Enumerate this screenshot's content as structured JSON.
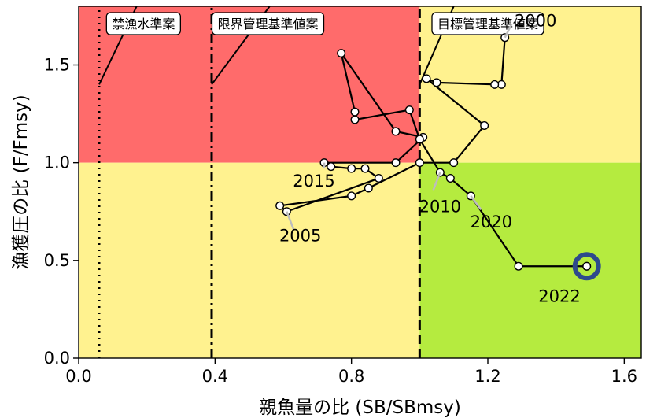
{
  "chart_data": {
    "type": "scatter",
    "xlabel": "親魚量の比 (SB/SBmsy)",
    "ylabel": "漁獲圧の比 (F/Fmsy)",
    "xlim": [
      0.0,
      1.65
    ],
    "ylim": [
      0.0,
      1.8
    ],
    "xticks": [
      0.0,
      0.4,
      0.8,
      1.2,
      1.6
    ],
    "xtick_labels": [
      "0.0",
      "0.4",
      "0.8",
      "1.2",
      "1.6"
    ],
    "yticks": [
      0.0,
      0.5,
      1.0,
      1.5
    ],
    "ytick_labels": [
      "0.0",
      "0.5",
      "1.0",
      "1.5"
    ],
    "zones": [
      {
        "x": [
          0.0,
          1.0
        ],
        "y": [
          1.0,
          1.8
        ],
        "color": "#ff6b6b"
      },
      {
        "x": [
          1.0,
          1.65
        ],
        "y": [
          1.0,
          1.8
        ],
        "color": "#fff28f"
      },
      {
        "x": [
          0.0,
          1.0
        ],
        "y": [
          0.0,
          1.0
        ],
        "color": "#fff28f"
      },
      {
        "x": [
          1.0,
          1.65
        ],
        "y": [
          0.0,
          1.0
        ],
        "color": "#b5eb3f"
      }
    ],
    "reference_lines": [
      {
        "label": "禁漁水準案",
        "x": 0.06,
        "style": "dotted",
        "label_x": 0.19,
        "line_from": [
          0.06,
          1.4
        ],
        "line_to": [
          0.17,
          1.8
        ]
      },
      {
        "label": "限界管理基準値案",
        "x": 0.39,
        "style": "dashdot",
        "label_x": 0.555,
        "line_from": [
          0.39,
          1.4
        ],
        "line_to": [
          0.56,
          1.8
        ]
      },
      {
        "label": "目標管理基準値案",
        "x": 1.0,
        "style": "dashed",
        "label_x": 1.2,
        "line_from": [
          1.0,
          1.4
        ],
        "line_to": [
          1.1,
          1.8
        ]
      }
    ],
    "series": [
      {
        "x": [
          1.25,
          1.24,
          1.22,
          1.05,
          1.02,
          1.19,
          1.1,
          1.0,
          0.85,
          0.8,
          0.59,
          0.61,
          0.88,
          0.84,
          0.8,
          0.74,
          0.72,
          0.93,
          1.01,
          0.93,
          0.77,
          0.81,
          0.81,
          0.97,
          1.0,
          1.06,
          1.09,
          1.15,
          1.29,
          1.49,
          1.49
        ],
        "y": [
          1.64,
          1.4,
          1.4,
          1.41,
          1.43,
          1.19,
          1.0,
          1.0,
          0.87,
          0.83,
          0.78,
          0.75,
          0.92,
          0.97,
          0.97,
          0.98,
          1.0,
          1.0,
          1.13,
          1.16,
          1.56,
          1.26,
          1.22,
          1.27,
          1.12,
          0.95,
          0.92,
          0.83,
          0.47,
          0.47,
          0.47
        ],
        "color": "#000000"
      }
    ],
    "point_labels": [
      {
        "text": "2000",
        "x": 1.34,
        "y": 1.73,
        "leader": [
          [
            1.25,
            1.64
          ],
          [
            1.27,
            1.71
          ]
        ]
      },
      {
        "text": "2005",
        "x": 0.65,
        "y": 0.63,
        "leader": [
          [
            0.61,
            0.75
          ],
          [
            0.63,
            0.66
          ]
        ]
      },
      {
        "text": "2010",
        "x": 1.06,
        "y": 0.78,
        "leader": [
          [
            1.06,
            0.95
          ],
          [
            1.04,
            0.86
          ]
        ]
      },
      {
        "text": "2015",
        "x": 0.69,
        "y": 0.91,
        "leader": [
          [
            0.72,
            1.0
          ],
          [
            0.72,
            0.97
          ]
        ]
      },
      {
        "text": "2020",
        "x": 1.21,
        "y": 0.7,
        "leader": [
          [
            1.15,
            0.83
          ],
          [
            1.18,
            0.76
          ]
        ]
      },
      {
        "text": "2022",
        "x": 1.41,
        "y": 0.32,
        "leader": []
      }
    ],
    "highlight": {
      "x": 1.49,
      "y": 0.47,
      "color": "#2e4a8c"
    }
  }
}
